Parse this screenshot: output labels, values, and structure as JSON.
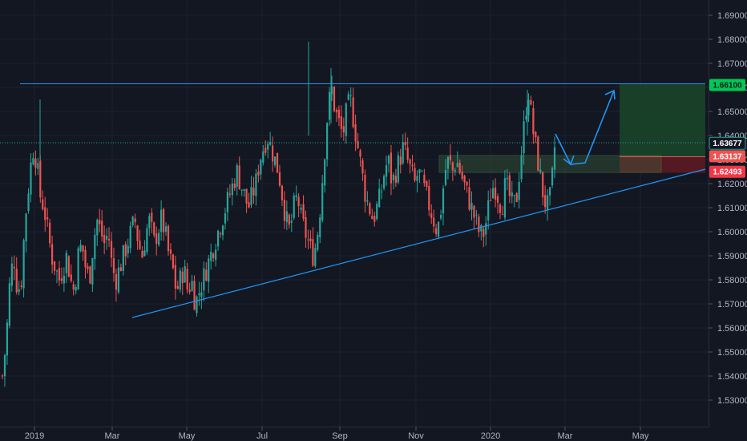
{
  "chart_data": {
    "type": "candlestick",
    "x_axis": {
      "ticks": [
        "2019",
        "Mar",
        "May",
        "Jul",
        "Sep",
        "Nov",
        "2020",
        "Mar",
        "May"
      ]
    },
    "y_axis": {
      "range": [
        1.525,
        1.695
      ],
      "ticks": [
        "1.53000",
        "1.54000",
        "1.55000",
        "1.56000",
        "1.57000",
        "1.58000",
        "1.59000",
        "1.60000",
        "1.61000",
        "1.62000",
        "1.63000",
        "1.64000",
        "1.65000",
        "1.66000",
        "1.67000",
        "1.68000",
        "1.69000"
      ]
    },
    "price_tags": [
      {
        "label": "1.66100",
        "value": 1.661,
        "color": "#00c853",
        "text": "dark"
      },
      {
        "label": "1.63677",
        "value": 1.63677,
        "color": "#131722",
        "text": "light",
        "border": "#26a69a"
      },
      {
        "label": "1.63137",
        "value": 1.63137,
        "color": "#ef5350",
        "text": "light"
      },
      {
        "label": "1.62493",
        "value": 1.62493,
        "color": "#f23645",
        "text": "light"
      }
    ],
    "series": [
      {
        "values": [
          1.54,
          1.555,
          1.58,
          1.59,
          1.575,
          1.58,
          1.605,
          1.62,
          1.635,
          1.63,
          1.615,
          1.61,
          1.6,
          1.59,
          1.585,
          1.58,
          1.585,
          1.59,
          1.58,
          1.575,
          1.59,
          1.595,
          1.585,
          1.58,
          1.595,
          1.605,
          1.6,
          1.595,
          1.6,
          1.585,
          1.58,
          1.585,
          1.59,
          1.595,
          1.6,
          1.605,
          1.595,
          1.59,
          1.6,
          1.605,
          1.595,
          1.6,
          1.605,
          1.6,
          1.59,
          1.585,
          1.575,
          1.58,
          1.585,
          1.575,
          1.58,
          1.57,
          1.575,
          1.58,
          1.585,
          1.59,
          1.595,
          1.6,
          1.605,
          1.61,
          1.615,
          1.62,
          1.625,
          1.62,
          1.615,
          1.61,
          1.615,
          1.62,
          1.63,
          1.635,
          1.64,
          1.635,
          1.63,
          1.625,
          1.615,
          1.605,
          1.6,
          1.61,
          1.615,
          1.605,
          1.6,
          1.595,
          1.59,
          1.595,
          1.61,
          1.63,
          1.65,
          1.66,
          1.65,
          1.645,
          1.64,
          1.65,
          1.655,
          1.645,
          1.635,
          1.625,
          1.615,
          1.61,
          1.605,
          1.61,
          1.615,
          1.625,
          1.63,
          1.62,
          1.625,
          1.63,
          1.635,
          1.63,
          1.625,
          1.62,
          1.625,
          1.62,
          1.615,
          1.61,
          1.605,
          1.6,
          1.61,
          1.625,
          1.63,
          1.625,
          1.63,
          1.625,
          1.62,
          1.615,
          1.61,
          1.605,
          1.6,
          1.598,
          1.605,
          1.615,
          1.62,
          1.615,
          1.61,
          1.62,
          1.615,
          1.61,
          1.615,
          1.63,
          1.645,
          1.66,
          1.645,
          1.635,
          1.625,
          1.615,
          1.61,
          1.615,
          1.635
        ]
      }
    ]
  }
}
